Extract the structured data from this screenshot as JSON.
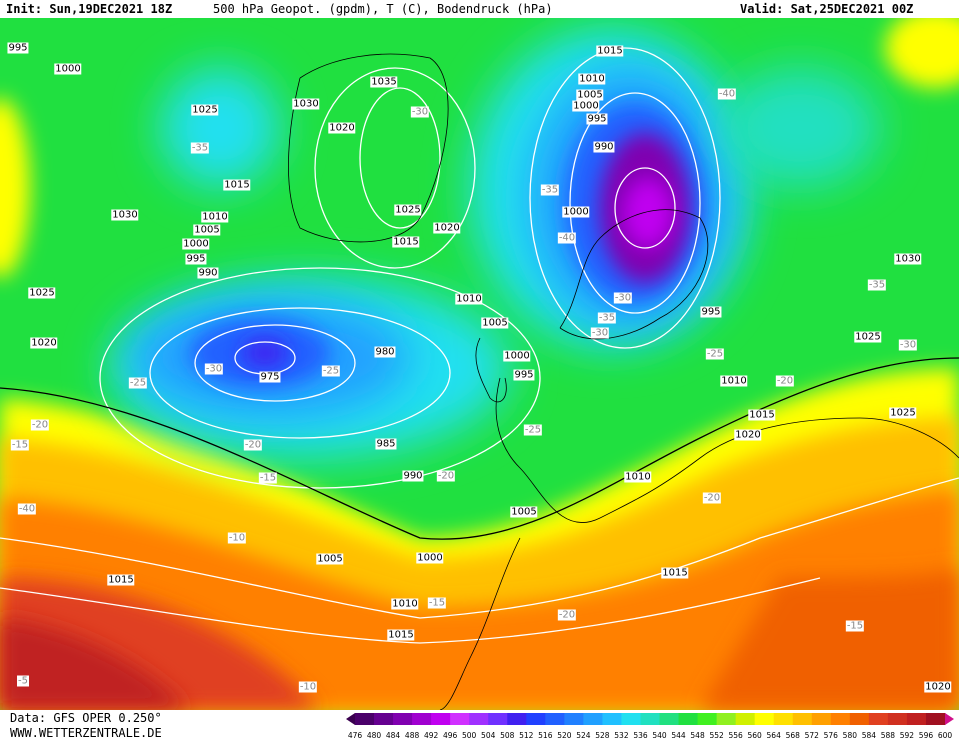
{
  "header": {
    "init": "Init: Sun,19DEC2021 18Z",
    "title": "500 hPa Geopot. (gpdm), T (C), Bodendruck (hPa)",
    "valid": "Valid: Sat,25DEC2021 00Z"
  },
  "footer": {
    "data_source": "Data: GFS OPER 0.250°",
    "website": "WWW.WETTERZENTRALE.DE"
  },
  "pressure_labels": [
    995,
    1000,
    1025,
    1030,
    1020,
    1035,
    1015,
    1030,
    1010,
    1005,
    1000,
    995,
    990,
    1025,
    1020,
    975,
    980,
    985,
    990,
    1005,
    1000,
    1005,
    1015,
    1010,
    1015,
    1010,
    1005,
    1000,
    995,
    1015,
    1020,
    1025,
    1015,
    1010,
    1005,
    1000,
    995,
    990,
    1000,
    995,
    1010,
    1015,
    1020,
    1030,
    1025,
    1025,
    1010,
    1015,
    1020
  ],
  "temperature_labels": [
    -35,
    -25,
    -30,
    -25,
    -20,
    -15,
    -20,
    -15,
    -20,
    -25,
    -35,
    -40,
    -30,
    -35,
    -30,
    -25,
    -40,
    -30,
    -20,
    -20,
    -20,
    -15,
    -15,
    -10,
    -5,
    -10,
    -40,
    -30,
    -35
  ],
  "colorbar": {
    "labels": [
      476,
      480,
      484,
      488,
      492,
      496,
      500,
      504,
      508,
      512,
      516,
      520,
      524,
      528,
      532,
      536,
      540,
      544,
      548,
      552,
      556,
      560,
      564,
      568,
      572,
      576,
      580,
      584,
      588,
      592,
      596,
      600
    ],
    "colors": [
      "#3a0050",
      "#4a006a",
      "#650090",
      "#8000b0",
      "#a000d0",
      "#c000f0",
      "#d030ff",
      "#a030ff",
      "#7030ff",
      "#4020f0",
      "#2040ff",
      "#2060ff",
      "#2080ff",
      "#20a0ff",
      "#20c0ff",
      "#20e0f0",
      "#20e0c0",
      "#20e080",
      "#20e040",
      "#40f020",
      "#90f020",
      "#d0f000",
      "#ffff00",
      "#ffe000",
      "#ffc000",
      "#ffa000",
      "#ff8000",
      "#f06000",
      "#e04020",
      "#d03020",
      "#c02020",
      "#a01020",
      "#d0108a"
    ]
  }
}
